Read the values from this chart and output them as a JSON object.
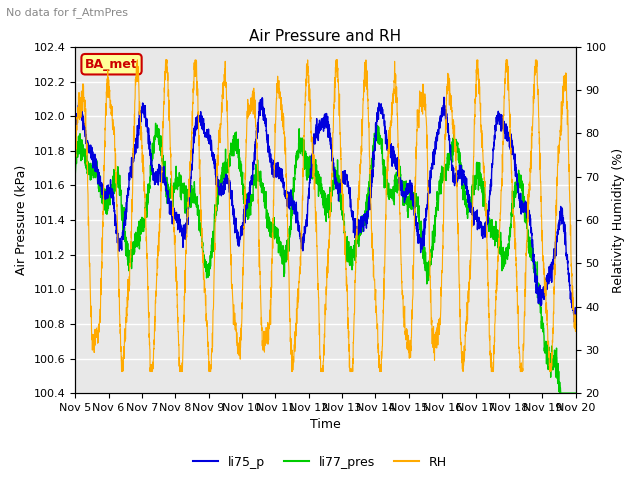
{
  "title": "Air Pressure and RH",
  "subtitle": "No data for f_AtmPres",
  "xlabel": "Time",
  "ylabel_left": "Air Pressure (kPa)",
  "ylabel_right": "Relativity Humidity (%)",
  "ylim_left": [
    100.4,
    102.4
  ],
  "ylim_right": [
    20,
    100
  ],
  "yticks_left": [
    100.4,
    100.6,
    100.8,
    101.0,
    101.2,
    101.4,
    101.6,
    101.8,
    102.0,
    102.2,
    102.4
  ],
  "yticks_right": [
    20,
    30,
    40,
    50,
    60,
    70,
    80,
    90,
    100
  ],
  "xtick_labels": [
    "Nov 5",
    "Nov 6",
    "Nov 7",
    "Nov 8",
    "Nov 9",
    "Nov 10",
    "Nov 11",
    "Nov 12",
    "Nov 13",
    "Nov 14",
    "Nov 15",
    "Nov 16",
    "Nov 17",
    "Nov 18",
    "Nov 19",
    "Nov 20"
  ],
  "color_blue": "#0000dd",
  "color_green": "#00cc00",
  "color_orange": "#ffaa00",
  "annotation_text": "BA_met",
  "annotation_color": "#cc0000",
  "annotation_bg": "#ffff99",
  "plot_bg": "#e8e8e8",
  "legend_labels": [
    "li75_p",
    "li77_pres",
    "RH"
  ],
  "n_points": 3000
}
